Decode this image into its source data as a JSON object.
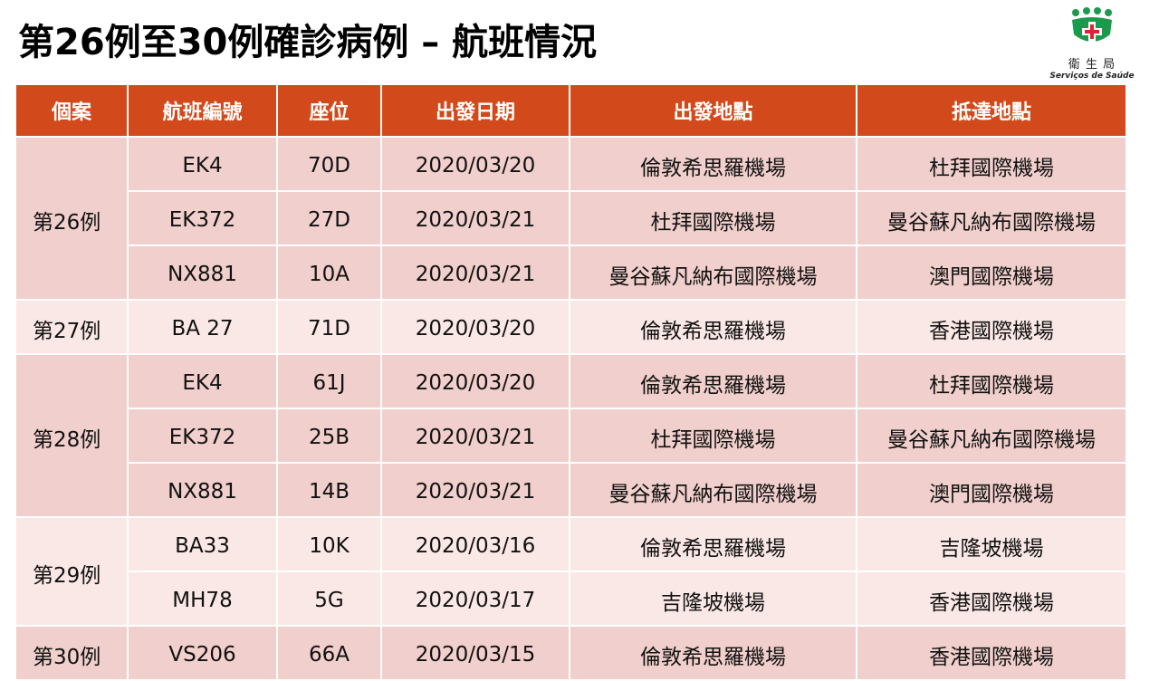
{
  "header": {
    "title": "第26例至30例確診病例 – 航班情況"
  },
  "logo": {
    "name": "衛 生 局",
    "subtitle": "Serviços de Saúde"
  },
  "table": {
    "columns": [
      "個案",
      "航班編號",
      "座位",
      "出發日期",
      "出發地點",
      "抵達地點"
    ],
    "groups": [
      {
        "case": "第26例",
        "rows": [
          [
            "EK4",
            "70D",
            "2020/03/20",
            "倫敦希思羅機場",
            "杜拜國際機場"
          ],
          [
            "EK372",
            "27D",
            "2020/03/21",
            "杜拜國際機場",
            "曼谷蘇凡納布國際機場"
          ],
          [
            "NX881",
            "10A",
            "2020/03/21",
            "曼谷蘇凡納布國際機場",
            "澳門國際機場"
          ]
        ]
      },
      {
        "case": "第27例",
        "rows": [
          [
            "BA 27",
            "71D",
            "2020/03/20",
            "倫敦希思羅機場",
            "香港國際機場"
          ]
        ]
      },
      {
        "case": "第28例",
        "rows": [
          [
            "EK4",
            "61J",
            "2020/03/20",
            "倫敦希思羅機場",
            "杜拜國際機場"
          ],
          [
            "EK372",
            "25B",
            "2020/03/21",
            "杜拜國際機場",
            "曼谷蘇凡納布國際機場"
          ],
          [
            "NX881",
            "14B",
            "2020/03/21",
            "曼谷蘇凡納布國際機場",
            "澳門國際機場"
          ]
        ]
      },
      {
        "case": "第29例",
        "rows": [
          [
            "BA33",
            "10K",
            "2020/03/16",
            "倫敦希思羅機場",
            "吉隆坡機場"
          ],
          [
            "MH78",
            "5G",
            "2020/03/17",
            "吉隆坡機場",
            "香港國際機場"
          ]
        ]
      },
      {
        "case": "第30例",
        "rows": [
          [
            "VS206",
            "66A",
            "2020/03/15",
            "倫敦希思羅機場",
            "香港國際機場"
          ]
        ]
      }
    ]
  }
}
